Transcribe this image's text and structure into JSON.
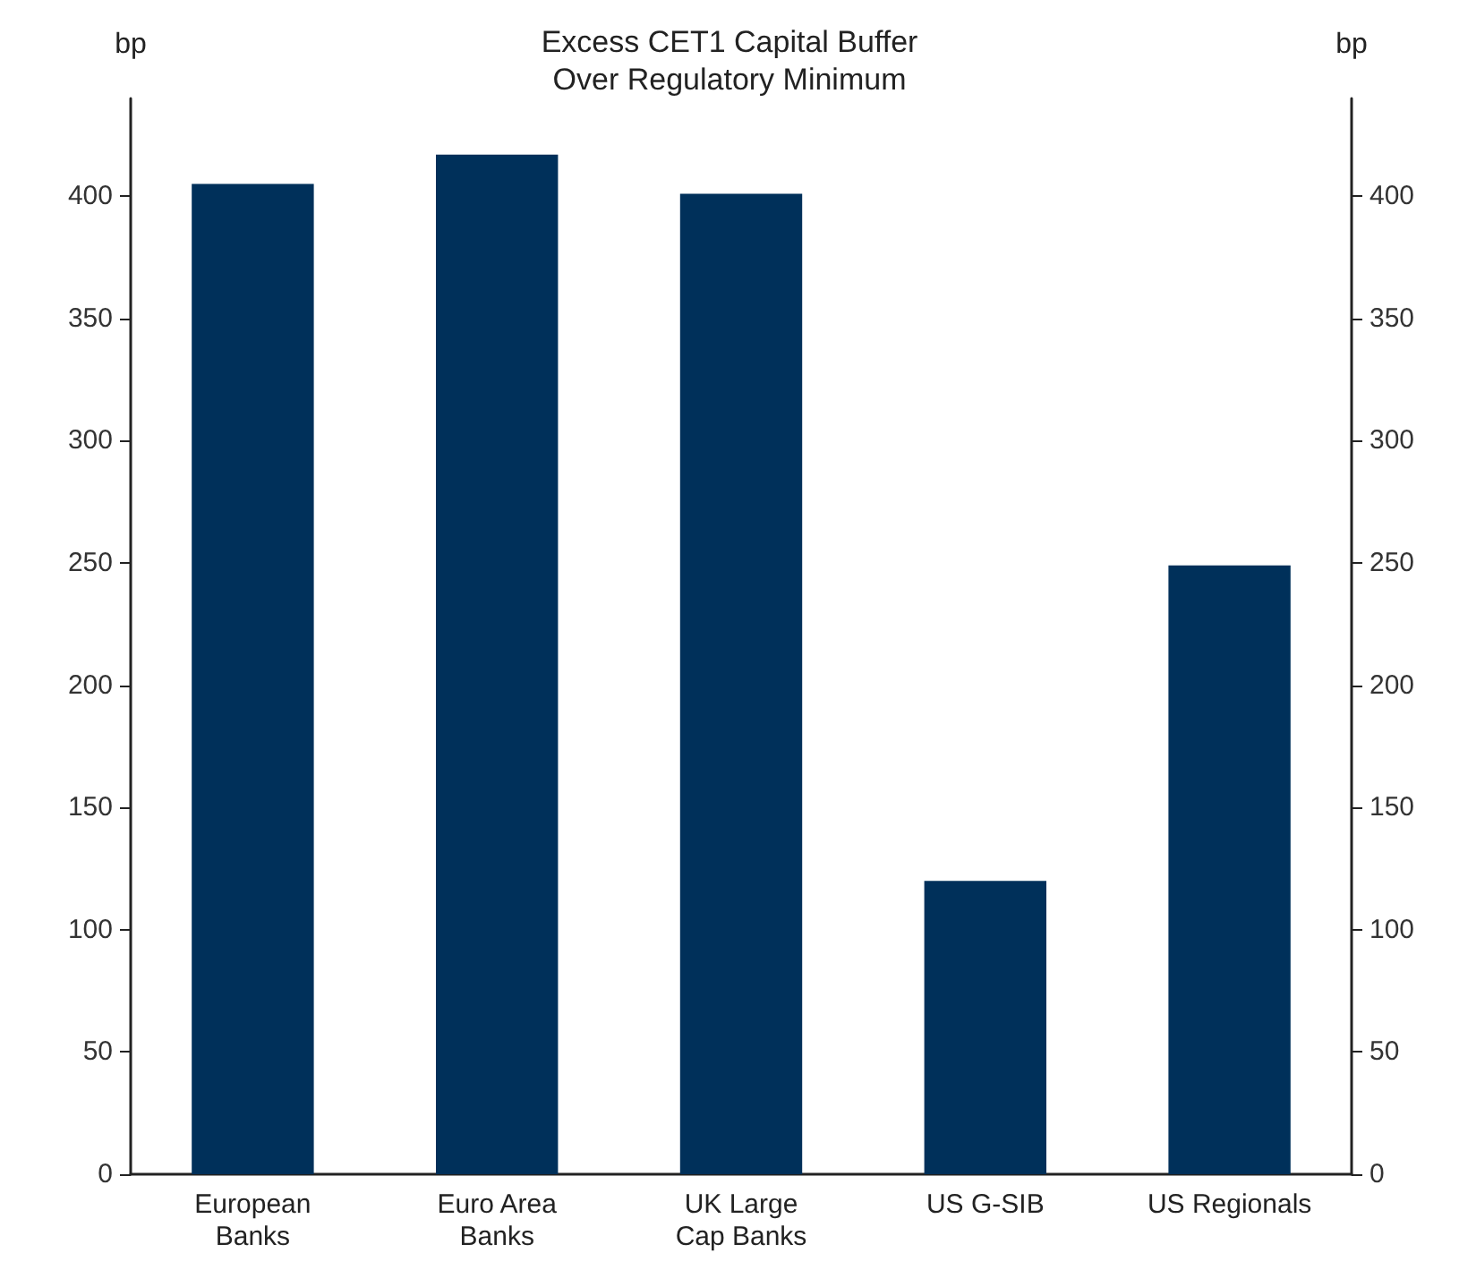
{
  "chart_data": {
    "type": "bar",
    "title": "Excess CET1 Capital Buffer\nOver Regulatory Minimum",
    "ylabel": "bp",
    "y2label": "bp",
    "categories": [
      "European\nBanks",
      "Euro Area\nBanks",
      "UK Large\nCap Banks",
      "US G-SIB",
      "US Regionals"
    ],
    "values": [
      405,
      417,
      401,
      120,
      249
    ],
    "color": "#00305a",
    "ylim": [
      0,
      440
    ],
    "yticks": [
      0,
      50,
      100,
      150,
      200,
      250,
      300,
      350,
      400
    ],
    "y2lim": [
      0,
      440
    ],
    "y2ticks": [
      0,
      50,
      100,
      150,
      200,
      250,
      300,
      350,
      400
    ],
    "grid": false
  }
}
